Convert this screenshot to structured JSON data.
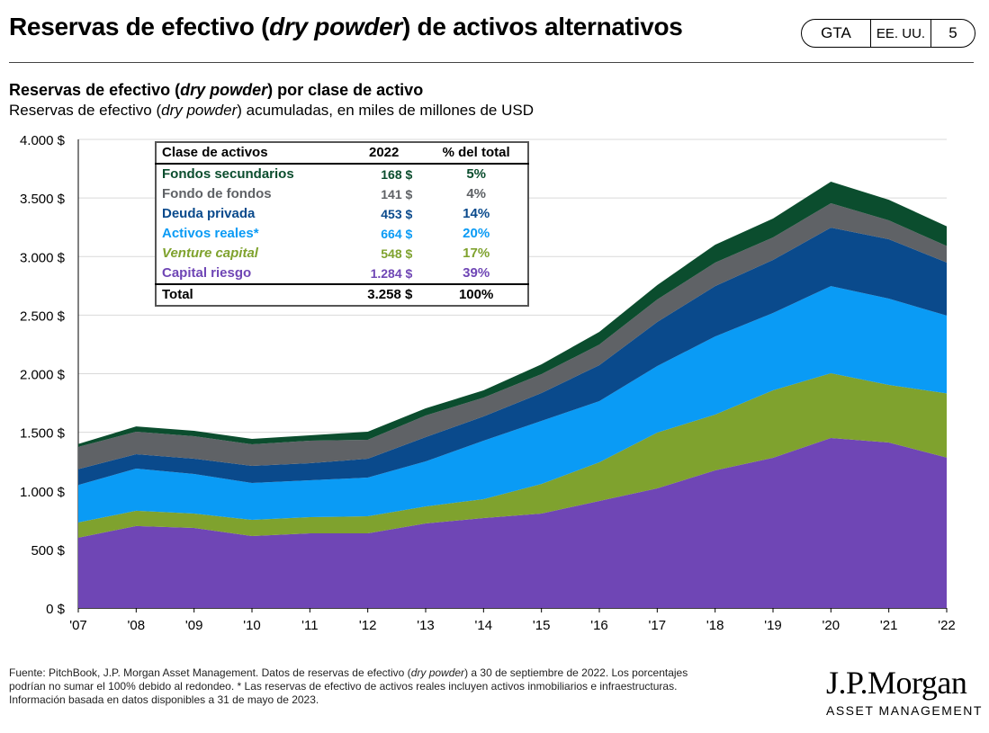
{
  "header": {
    "title_pre": "Reservas de efectivo (",
    "title_em": "dry powder",
    "title_post": ") de activos alternativos",
    "badge": [
      "GTA",
      "EE. UU.",
      "5"
    ]
  },
  "subtitle": {
    "l1_pre": "Reservas de efectivo (",
    "l1_em": "dry powder",
    "l1_post": ") por clase de activo",
    "l2_pre": "Reservas de efectivo (",
    "l2_em": "dry powder",
    "l2_post": ") acumuladas, en miles de millones de USD"
  },
  "table": {
    "headers": [
      "Clase de activos",
      "2022",
      "% del total"
    ],
    "rows": [
      {
        "label": "Fondos secundarios",
        "value": "168 $",
        "pct": "5%",
        "color": "#0B4D2E"
      },
      {
        "label": "Fondo de fondos",
        "value": "141 $",
        "pct": "4%",
        "color": "#5F6266"
      },
      {
        "label": "Deuda privada",
        "value": "453 $",
        "pct": "14%",
        "color": "#0A4A8C"
      },
      {
        "label": "Activos reales*",
        "value": "664 $",
        "pct": "20%",
        "color": "#0A9BF5"
      },
      {
        "label": "Venture capital",
        "value": "548 $",
        "pct": "17%",
        "color": "#7FA22E"
      },
      {
        "label": "Capital riesgo",
        "value": "1.284 $",
        "pct": "39%",
        "color": "#6F46B5"
      }
    ],
    "total": {
      "label": "Total",
      "value": "3.258 $",
      "pct": "100%"
    }
  },
  "chart_data": {
    "type": "area",
    "stacked": true,
    "title": "Reservas de efectivo (dry powder) por clase de activo",
    "ylabel": "miles de millones de USD",
    "ylim": [
      0,
      4000
    ],
    "yticks": [
      0,
      500,
      1000,
      1500,
      2000,
      2500,
      3000,
      3500,
      4000
    ],
    "ytick_labels": [
      "0 $",
      "500 $",
      "1.000 $",
      "1.500 $",
      "2.000 $",
      "2.500 $",
      "3.000 $",
      "3.500 $",
      "4.000 $"
    ],
    "categories": [
      "'07",
      "'08",
      "'09",
      "'10",
      "'11",
      "'12",
      "'13",
      "'14",
      "'15",
      "'16",
      "'17",
      "'18",
      "'19",
      "'20",
      "'21",
      "'22"
    ],
    "series": [
      {
        "name": "Capital riesgo",
        "color": "#6F46B5",
        "values": [
          600,
          700,
          683,
          614,
          637,
          637,
          722,
          768,
          806,
          914,
          1021,
          1175,
          1282,
          1451,
          1413,
          1284
        ]
      },
      {
        "name": "Venture capital",
        "color": "#7FA22E",
        "values": [
          130,
          130,
          123,
          138,
          138,
          146,
          145,
          161,
          253,
          330,
          476,
          476,
          576,
          553,
          491,
          548
        ]
      },
      {
        "name": "Activos reales",
        "color": "#0A9BF5",
        "values": [
          320,
          360,
          338,
          315,
          315,
          330,
          384,
          499,
          538,
          522,
          568,
          667,
          660,
          744,
          737,
          664
        ]
      },
      {
        "name": "Deuda privada",
        "color": "#0A4A8C",
        "values": [
          135,
          123,
          130,
          146,
          146,
          161,
          208,
          207,
          238,
          307,
          376,
          430,
          453,
          499,
          507,
          453
        ]
      },
      {
        "name": "Fondo de fondos",
        "color": "#5F6266",
        "values": [
          190,
          192,
          192,
          184,
          192,
          162,
          184,
          161,
          161,
          176,
          192,
          200,
          192,
          208,
          161,
          141
        ]
      },
      {
        "name": "Fondos secundarios",
        "color": "#0B4D2E",
        "values": [
          25,
          45,
          46,
          46,
          46,
          69,
          61,
          62,
          84,
          108,
          123,
          153,
          161,
          184,
          176,
          168
        ]
      }
    ],
    "grid": true
  },
  "footer": {
    "l1_pre": "Fuente: PitchBook, J.P. Morgan Asset Management. Datos de reservas de efectivo (",
    "l1_em": "dry powder",
    "l1_post": ") a 30 de septiembre de 2022. Los porcentajes",
    "l2": "podrían no sumar el 100% debido al redondeo. * Las reservas de efectivo de activos reales incluyen activos inmobiliarios e infraestructuras.",
    "l3": "Información basada en datos disponibles a 31 de mayo de 2023."
  },
  "logo": {
    "name": "J.P.Morgan",
    "sub": "ASSET MANAGEMENT"
  }
}
